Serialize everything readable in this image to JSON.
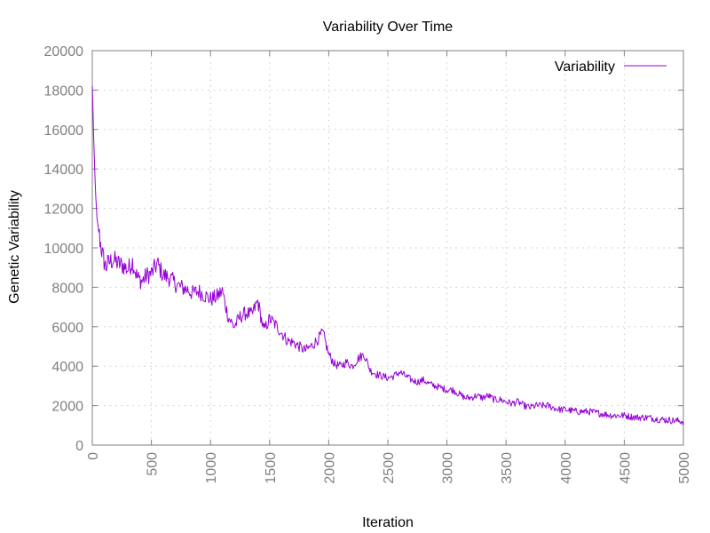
{
  "chart_data": {
    "type": "line",
    "title": "Variability Over Time",
    "xlabel": "Iteration",
    "ylabel": "Genetic Variability",
    "xlim": [
      0,
      5000
    ],
    "ylim": [
      0,
      20000
    ],
    "xticks": [
      0,
      500,
      1000,
      1500,
      2000,
      2500,
      3000,
      3500,
      4000,
      4500,
      5000
    ],
    "yticks": [
      0,
      2000,
      4000,
      6000,
      8000,
      10000,
      12000,
      14000,
      16000,
      18000,
      20000
    ],
    "x_tick_rotation": "vertical",
    "grid": true,
    "legend_position": "top-right",
    "series": [
      {
        "name": "Variability",
        "color": "#9400d3",
        "x": [
          0,
          10,
          20,
          30,
          40,
          55,
          70,
          85,
          100,
          115,
          130,
          150,
          180,
          220,
          260,
          300,
          340,
          380,
          420,
          460,
          500,
          550,
          600,
          650,
          700,
          750,
          800,
          850,
          900,
          950,
          1000,
          1050,
          1100,
          1150,
          1200,
          1250,
          1300,
          1350,
          1400,
          1450,
          1500,
          1550,
          1600,
          1650,
          1700,
          1750,
          1800,
          1850,
          1900,
          1950,
          2000,
          2050,
          2100,
          2150,
          2200,
          2250,
          2300,
          2350,
          2400,
          2450,
          2500,
          2550,
          2600,
          2650,
          2700,
          2750,
          2800,
          2850,
          2900,
          2950,
          3000,
          3050,
          3100,
          3150,
          3200,
          3250,
          3300,
          3350,
          3400,
          3450,
          3500,
          3550,
          3600,
          3650,
          3700,
          3750,
          3800,
          3850,
          3900,
          3950,
          4000,
          4100,
          4200,
          4300,
          4400,
          4500,
          4600,
          4700,
          4800,
          4900,
          5000
        ],
        "values": [
          18200,
          16000,
          14000,
          12500,
          11500,
          10800,
          10200,
          9700,
          9300,
          9000,
          9200,
          9300,
          9400,
          9200,
          9100,
          8900,
          9300,
          8500,
          8300,
          8600,
          8700,
          9200,
          8600,
          8500,
          8200,
          8000,
          7900,
          7700,
          7800,
          7600,
          7400,
          7500,
          7800,
          6500,
          6000,
          6500,
          6700,
          6600,
          7300,
          5800,
          6400,
          6100,
          5700,
          5300,
          5200,
          5000,
          4800,
          5000,
          5300,
          5700,
          4600,
          4100,
          4000,
          4200,
          4000,
          4400,
          4600,
          3800,
          3600,
          3500,
          3400,
          3500,
          3700,
          3500,
          3300,
          3200,
          3300,
          3100,
          3000,
          2900,
          2800,
          2800,
          2600,
          2400,
          2400,
          2500,
          2400,
          2500,
          2300,
          2300,
          2200,
          2100,
          2200,
          2000,
          1900,
          2000,
          2000,
          2000,
          1900,
          1800,
          1800,
          1700,
          1700,
          1600,
          1500,
          1500,
          1400,
          1400,
          1300,
          1250,
          1200
        ]
      }
    ]
  }
}
